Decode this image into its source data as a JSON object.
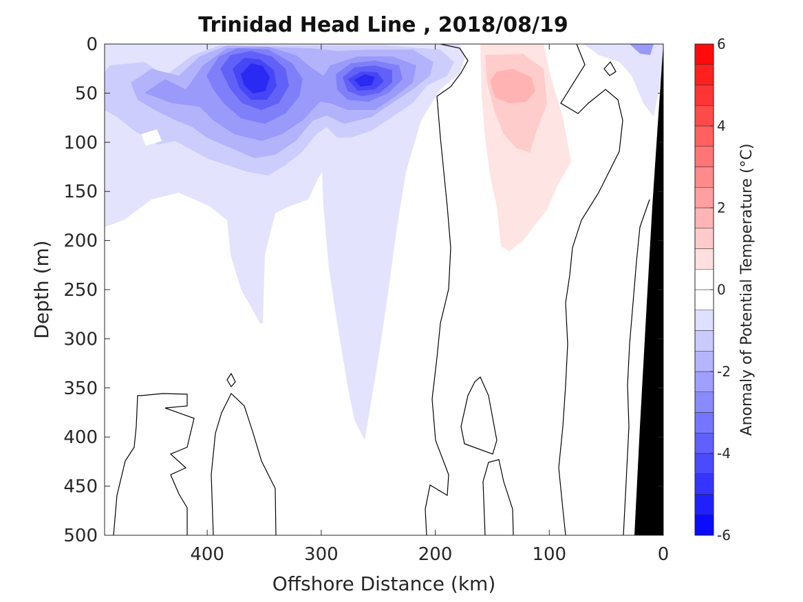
{
  "chart_data": {
    "type": "contour",
    "title": "Trinidad Head Line , 2018/08/19",
    "xlabel": "Offshore Distance (km)",
    "ylabel": "Depth (m)",
    "xlim": [
      490,
      0
    ],
    "x_reversed": true,
    "ylim": [
      500,
      0
    ],
    "y_reversed": true,
    "x_ticks": [
      400,
      300,
      200,
      100,
      0
    ],
    "x_tick_labels": [
      "400",
      "300",
      "200",
      "100",
      "0"
    ],
    "y_ticks": [
      0,
      50,
      100,
      150,
      200,
      250,
      300,
      350,
      400,
      450,
      500
    ],
    "y_tick_labels": [
      "0",
      "50",
      "100",
      "150",
      "200",
      "250",
      "300",
      "350",
      "400",
      "450",
      "500"
    ],
    "grid": false,
    "colorbar": {
      "label": "Anomaly of Potential Temperature (°C)",
      "clim": [
        -6,
        6
      ],
      "step": 0.5,
      "ticks": [
        6,
        4,
        2,
        0,
        -2,
        -4,
        -6
      ],
      "tick_labels": [
        "6",
        "4",
        "2",
        "0",
        "-2",
        "-4",
        "-6"
      ],
      "neg_color": "#0000ff",
      "pos_color": "#ff0000",
      "zero_color": "#ffffff"
    },
    "cold_anomaly_cores": [
      {
        "x_km": 360,
        "depth_m": 40,
        "value_c": -4.5
      },
      {
        "x_km": 260,
        "depth_m": 35,
        "value_c": -3.5
      }
    ],
    "warm_anomaly_core": {
      "x_km": 135,
      "depth_m": 40,
      "value_c": 1.5
    },
    "bathymetry": {
      "color": "#000000",
      "points_km_m": [
        [
          0,
          0
        ],
        [
          25,
          500
        ],
        [
          0,
          500
        ]
      ]
    }
  }
}
